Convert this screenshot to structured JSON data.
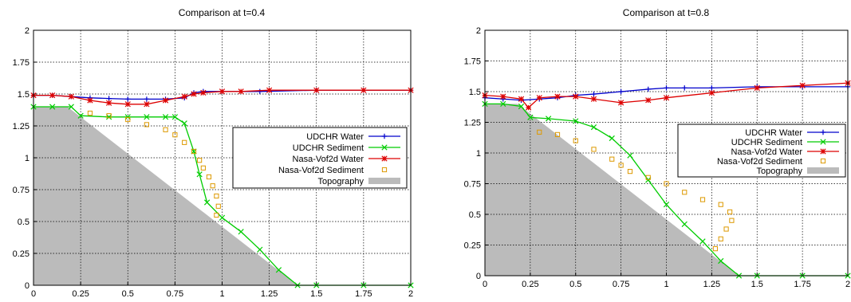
{
  "chart_data": [
    {
      "type": "line",
      "title": "Comparison at t=0.4",
      "xlim": [
        0,
        2
      ],
      "ylim": [
        0,
        2
      ],
      "xticks": [
        0,
        0.25,
        0.5,
        0.75,
        1,
        1.25,
        1.5,
        1.75,
        2
      ],
      "yticks": [
        0,
        0.25,
        0.5,
        0.75,
        1,
        1.25,
        1.5,
        1.75,
        2
      ],
      "xtick_labels": [
        "0",
        "0.25",
        "0.5",
        "0.75",
        "1",
        "1.25",
        "1.5",
        "1.75",
        "2"
      ],
      "ytick_labels": [
        "0",
        "0.25",
        "0.5",
        "0.75",
        "1",
        "1.25",
        "1.5",
        "1.75",
        "2"
      ],
      "grid": true,
      "legend_position": "right",
      "series": [
        {
          "name": "UDCHR Water",
          "color": "#0000cc",
          "marker": "plus",
          "x": [
            0,
            0.1,
            0.2,
            0.3,
            0.4,
            0.5,
            0.6,
            0.7,
            0.8,
            0.85,
            0.9,
            1.0,
            1.2,
            1.5,
            1.75,
            2.0
          ],
          "y": [
            1.49,
            1.49,
            1.48,
            1.47,
            1.465,
            1.46,
            1.46,
            1.46,
            1.47,
            1.51,
            1.52,
            1.52,
            1.52,
            1.53,
            1.53,
            1.53
          ]
        },
        {
          "name": "UDCHR Sediment",
          "color": "#00cc00",
          "marker": "cross",
          "x": [
            0,
            0.1,
            0.2,
            0.25,
            0.4,
            0.5,
            0.6,
            0.7,
            0.75,
            0.8,
            0.85,
            0.88,
            0.92,
            1.0,
            1.1,
            1.2,
            1.3,
            1.4,
            1.5,
            1.75,
            2.0
          ],
          "y": [
            1.4,
            1.4,
            1.4,
            1.33,
            1.32,
            1.32,
            1.32,
            1.32,
            1.32,
            1.27,
            1.05,
            0.87,
            0.65,
            0.53,
            0.42,
            0.28,
            0.12,
            0.0,
            0.0,
            0.0,
            0.0
          ]
        },
        {
          "name": "Nasa-Vof2d Water",
          "color": "#dd0000",
          "marker": "star",
          "x": [
            0,
            0.1,
            0.2,
            0.3,
            0.4,
            0.5,
            0.6,
            0.7,
            0.8,
            0.85,
            0.9,
            1.0,
            1.1,
            1.25,
            1.5,
            1.75,
            2.0
          ],
          "y": [
            1.49,
            1.49,
            1.48,
            1.45,
            1.43,
            1.42,
            1.42,
            1.45,
            1.48,
            1.5,
            1.51,
            1.52,
            1.52,
            1.53,
            1.53,
            1.53,
            1.53
          ]
        },
        {
          "name": "Nasa-Vof2d Sediment",
          "color": "#dd9900",
          "marker": "square",
          "x": [
            0.3,
            0.4,
            0.5,
            0.6,
            0.7,
            0.75,
            0.8,
            0.85,
            0.88,
            0.9,
            0.93,
            0.95,
            0.97,
            0.98,
            0.97
          ],
          "y": [
            1.35,
            1.33,
            1.3,
            1.26,
            1.22,
            1.18,
            1.12,
            1.05,
            0.98,
            0.92,
            0.85,
            0.78,
            0.7,
            0.62,
            0.55
          ]
        }
      ],
      "topography": {
        "name": "Topography",
        "color": "#bbbbbb",
        "x": [
          0,
          0.18,
          1.4,
          0
        ],
        "y": [
          1.4,
          1.4,
          0,
          0
        ]
      }
    },
    {
      "type": "line",
      "title": "Comparison at t=0.8",
      "xlim": [
        0,
        2
      ],
      "ylim": [
        0,
        2
      ],
      "xticks": [
        0,
        0.25,
        0.5,
        0.75,
        1,
        1.25,
        1.5,
        1.75,
        2
      ],
      "yticks": [
        0,
        0.25,
        0.5,
        0.75,
        1,
        1.25,
        1.5,
        1.75,
        2
      ],
      "xtick_labels": [
        "0",
        "0.25",
        "0.5",
        "0.75",
        "1",
        "1.25",
        "1.5",
        "1.75",
        "2"
      ],
      "ytick_labels": [
        "0",
        "0.25",
        "0.5",
        "0.75",
        "1",
        "1.25",
        "1.5",
        "1.75",
        "2"
      ],
      "grid": true,
      "legend_position": "right",
      "series": [
        {
          "name": "UDCHR Water",
          "color": "#0000cc",
          "marker": "plus",
          "x": [
            0,
            0.1,
            0.2,
            0.3,
            0.4,
            0.5,
            0.6,
            0.75,
            0.9,
            1.0,
            1.1,
            1.25,
            1.5,
            1.75,
            2.0
          ],
          "y": [
            1.45,
            1.44,
            1.43,
            1.44,
            1.45,
            1.47,
            1.48,
            1.5,
            1.52,
            1.53,
            1.53,
            1.53,
            1.54,
            1.54,
            1.54
          ]
        },
        {
          "name": "UDCHR Sediment",
          "color": "#00cc00",
          "marker": "cross",
          "x": [
            0,
            0.1,
            0.2,
            0.25,
            0.35,
            0.5,
            0.6,
            0.7,
            0.8,
            0.9,
            1.0,
            1.1,
            1.2,
            1.3,
            1.4,
            1.5,
            1.75,
            2.0
          ],
          "y": [
            1.4,
            1.4,
            1.38,
            1.29,
            1.28,
            1.26,
            1.21,
            1.12,
            0.98,
            0.78,
            0.58,
            0.42,
            0.28,
            0.12,
            0.0,
            0.0,
            0.0,
            0.0
          ]
        },
        {
          "name": "Nasa-Vof2d Water",
          "color": "#dd0000",
          "marker": "star",
          "x": [
            0,
            0.1,
            0.2,
            0.24,
            0.3,
            0.4,
            0.5,
            0.6,
            0.75,
            0.9,
            1.0,
            1.25,
            1.5,
            1.75,
            2.0
          ],
          "y": [
            1.47,
            1.46,
            1.44,
            1.37,
            1.45,
            1.46,
            1.46,
            1.44,
            1.41,
            1.43,
            1.45,
            1.49,
            1.53,
            1.55,
            1.57
          ]
        },
        {
          "name": "Nasa-Vof2d Sediment",
          "color": "#dd9900",
          "marker": "square",
          "x": [
            0.3,
            0.4,
            0.5,
            0.6,
            0.7,
            0.75,
            0.8,
            0.9,
            1.0,
            1.1,
            1.2,
            1.3,
            1.35,
            1.36,
            1.33,
            1.3,
            1.27
          ],
          "y": [
            1.17,
            1.15,
            1.1,
            1.03,
            0.95,
            0.9,
            0.85,
            0.8,
            0.75,
            0.68,
            0.62,
            0.58,
            0.52,
            0.45,
            0.38,
            0.3,
            0.22
          ]
        }
      ],
      "topography": {
        "name": "Topography",
        "color": "#bbbbbb",
        "x": [
          0,
          0.18,
          1.4,
          0
        ],
        "y": [
          1.4,
          1.4,
          0,
          0
        ]
      }
    }
  ]
}
